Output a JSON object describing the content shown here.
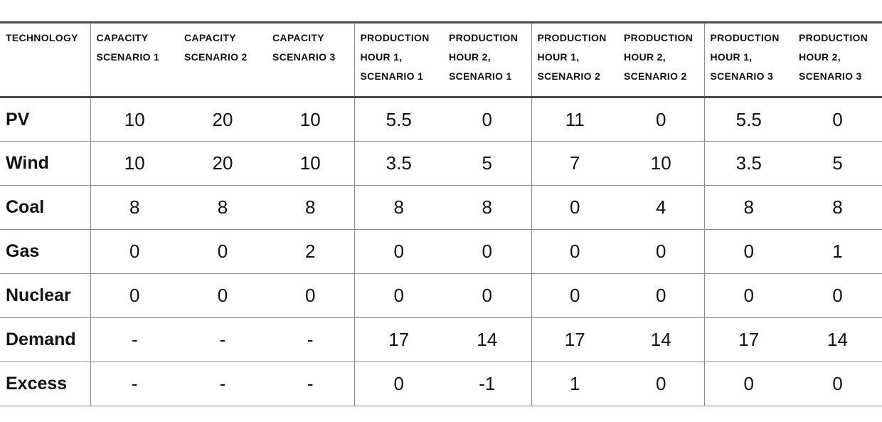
{
  "table": {
    "header": {
      "technology": "TECHNOLOGY",
      "columns": [
        "CAPACITY\nSCENARIO 1",
        "CAPACITY\nSCENARIO 2",
        "CAPACITY\nSCENARIO 3",
        "PRODUCTION\nHOUR 1,\nSCENARIO 1",
        "PRODUCTION\nHOUR 2,\nSCENARIO 1",
        "PRODUCTION\nHOUR 1,\nSCENARIO 2",
        "PRODUCTION\nHOUR 2,\nSCENARIO 2",
        "PRODUCTION\nHOUR 1,\nSCENARIO 3",
        "PRODUCTION\nHOUR 2,\nSCENARIO 3"
      ]
    },
    "rows": [
      {
        "technology": "PV",
        "values": [
          "10",
          "20",
          "10",
          "5.5",
          "0",
          "11",
          "0",
          "5.5",
          "0"
        ]
      },
      {
        "technology": "Wind",
        "values": [
          "10",
          "20",
          "10",
          "3.5",
          "5",
          "7",
          "10",
          "3.5",
          "5"
        ]
      },
      {
        "technology": "Coal",
        "values": [
          "8",
          "8",
          "8",
          "8",
          "8",
          "0",
          "4",
          "8",
          "8"
        ]
      },
      {
        "technology": "Gas",
        "values": [
          "0",
          "0",
          "2",
          "0",
          "0",
          "0",
          "0",
          "0",
          "1"
        ]
      },
      {
        "technology": "Nuclear",
        "values": [
          "0",
          "0",
          "0",
          "0",
          "0",
          "0",
          "0",
          "0",
          "0"
        ]
      },
      {
        "technology": "Demand",
        "values": [
          "-",
          "-",
          "-",
          "17",
          "14",
          "17",
          "14",
          "17",
          "14"
        ]
      },
      {
        "technology": "Excess",
        "values": [
          "-",
          "-",
          "-",
          "0",
          "-1",
          "1",
          "0",
          "0",
          "0"
        ]
      }
    ],
    "colors": {
      "thick_border": "#4a4a4a",
      "thin_border": "#8a8a8a",
      "text": "#121212",
      "background": "#ffffff"
    }
  }
}
